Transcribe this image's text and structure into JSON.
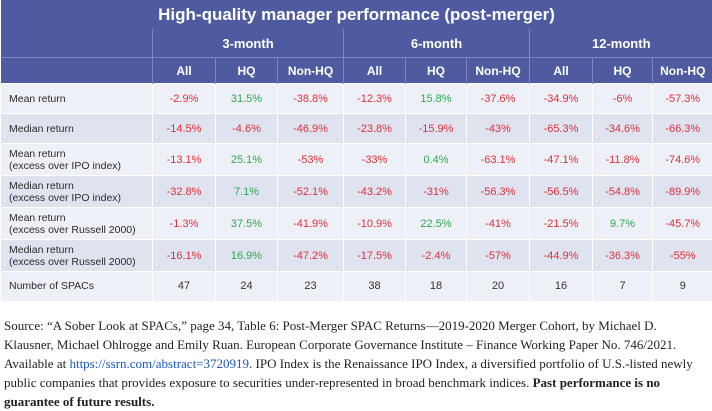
{
  "table": {
    "title": "High-quality manager performance (post-merger)",
    "groups": [
      "3-month",
      "6-month",
      "12-month"
    ],
    "subheaders": [
      "All",
      "HQ",
      "Non-HQ",
      "All",
      "HQ",
      "Non-HQ",
      "All",
      "HQ",
      "Non-HQ"
    ],
    "rows": [
      {
        "label_line1": "Mean return",
        "label_line2": "",
        "cells": [
          {
            "v": "-2.9%",
            "c": "neg"
          },
          {
            "v": "31.5%",
            "c": "pos"
          },
          {
            "v": "-38.8%",
            "c": "neg"
          },
          {
            "v": "-12.3%",
            "c": "neg"
          },
          {
            "v": "15.8%",
            "c": "pos"
          },
          {
            "v": "-37.6%",
            "c": "neg"
          },
          {
            "v": "-34.9%",
            "c": "neg"
          },
          {
            "v": "-6%",
            "c": "neg"
          },
          {
            "v": "-57.3%",
            "c": "neg"
          }
        ]
      },
      {
        "label_line1": "Median return",
        "label_line2": "",
        "cells": [
          {
            "v": "-14.5%",
            "c": "neg"
          },
          {
            "v": "-4.6%",
            "c": "neg"
          },
          {
            "v": "-46.9%",
            "c": "neg"
          },
          {
            "v": "-23.8%",
            "c": "neg"
          },
          {
            "v": "-15.9%",
            "c": "neg"
          },
          {
            "v": "-43%",
            "c": "neg"
          },
          {
            "v": "-65.3%",
            "c": "neg"
          },
          {
            "v": "-34.6%",
            "c": "neg"
          },
          {
            "v": "-66.3%",
            "c": "neg"
          }
        ]
      },
      {
        "label_line1": "Mean return",
        "label_line2": "(excess over IPO index)",
        "cells": [
          {
            "v": "-13.1%",
            "c": "neg"
          },
          {
            "v": "25.1%",
            "c": "pos"
          },
          {
            "v": "-53%",
            "c": "neg"
          },
          {
            "v": "-33%",
            "c": "neg"
          },
          {
            "v": "0.4%",
            "c": "pos"
          },
          {
            "v": "-63.1%",
            "c": "neg"
          },
          {
            "v": "-47.1%",
            "c": "neg"
          },
          {
            "v": "-11.8%",
            "c": "neg"
          },
          {
            "v": "-74.6%",
            "c": "neg"
          }
        ]
      },
      {
        "label_line1": "Median return",
        "label_line2": "(excess over IPO index)",
        "cells": [
          {
            "v": "-32.8%",
            "c": "neg"
          },
          {
            "v": "7.1%",
            "c": "pos"
          },
          {
            "v": "-52.1%",
            "c": "neg"
          },
          {
            "v": "-43.2%",
            "c": "neg"
          },
          {
            "v": "-31%",
            "c": "neg"
          },
          {
            "v": "-56.3%",
            "c": "neg"
          },
          {
            "v": "-56.5%",
            "c": "neg"
          },
          {
            "v": "-54.8%",
            "c": "neg"
          },
          {
            "v": "-89.9%",
            "c": "neg"
          }
        ]
      },
      {
        "label_line1": "Mean return",
        "label_line2": "(excess over Russell 2000)",
        "cells": [
          {
            "v": "-1.3%",
            "c": "neg"
          },
          {
            "v": "37.5%",
            "c": "pos"
          },
          {
            "v": "-41.9%",
            "c": "neg"
          },
          {
            "v": "-10.9%",
            "c": "neg"
          },
          {
            "v": "22.5%",
            "c": "pos"
          },
          {
            "v": "-41%",
            "c": "neg"
          },
          {
            "v": "-21.5%",
            "c": "neg"
          },
          {
            "v": "9.7%",
            "c": "pos"
          },
          {
            "v": "-45.7%",
            "c": "neg"
          }
        ]
      },
      {
        "label_line1": "Median return",
        "label_line2": "(excess over Russell 2000)",
        "cells": [
          {
            "v": "-16.1%",
            "c": "neg"
          },
          {
            "v": "16.9%",
            "c": "pos"
          },
          {
            "v": "-47.2%",
            "c": "neg"
          },
          {
            "v": "-17.5%",
            "c": "neg"
          },
          {
            "v": "-2.4%",
            "c": "neg"
          },
          {
            "v": "-57%",
            "c": "neg"
          },
          {
            "v": "-44.9%",
            "c": "neg"
          },
          {
            "v": "-36.3%",
            "c": "neg"
          },
          {
            "v": "-55%",
            "c": "neg"
          }
        ]
      },
      {
        "label_line1": "Number of SPACs",
        "label_line2": "",
        "cells": [
          {
            "v": "47",
            "c": "neutral"
          },
          {
            "v": "24",
            "c": "neutral"
          },
          {
            "v": "23",
            "c": "neutral"
          },
          {
            "v": "38",
            "c": "neutral"
          },
          {
            "v": "18",
            "c": "neutral"
          },
          {
            "v": "20",
            "c": "neutral"
          },
          {
            "v": "16",
            "c": "neutral"
          },
          {
            "v": "7",
            "c": "neutral"
          },
          {
            "v": "9",
            "c": "neutral"
          }
        ]
      }
    ],
    "colors": {
      "header": "#4f5ba0",
      "negative": "#e0303a",
      "positive": "#2fa84f"
    }
  },
  "source": {
    "text_before_link": "Source: “A Sober Look at SPACs,” page 34, Table 6: Post-Merger SPAC Returns—2019-2020 Merger Cohort, by Michael D. Klausner, Michael Ohlrogge and Emily Ruan. European Corporate Governance Institute – Finance Working Paper No. 746/2021. Available at ",
    "link_text": "https://ssrn.com/abstract=3720919",
    "text_after_link": ". IPO Index is the Renaissance IPO Index, a diversified portfolio of U.S.-listed newly public companies that provides exposure to securities under-represented in broad benchmark indices. ",
    "disclaimer": "Past performance is no guarantee of future results."
  }
}
